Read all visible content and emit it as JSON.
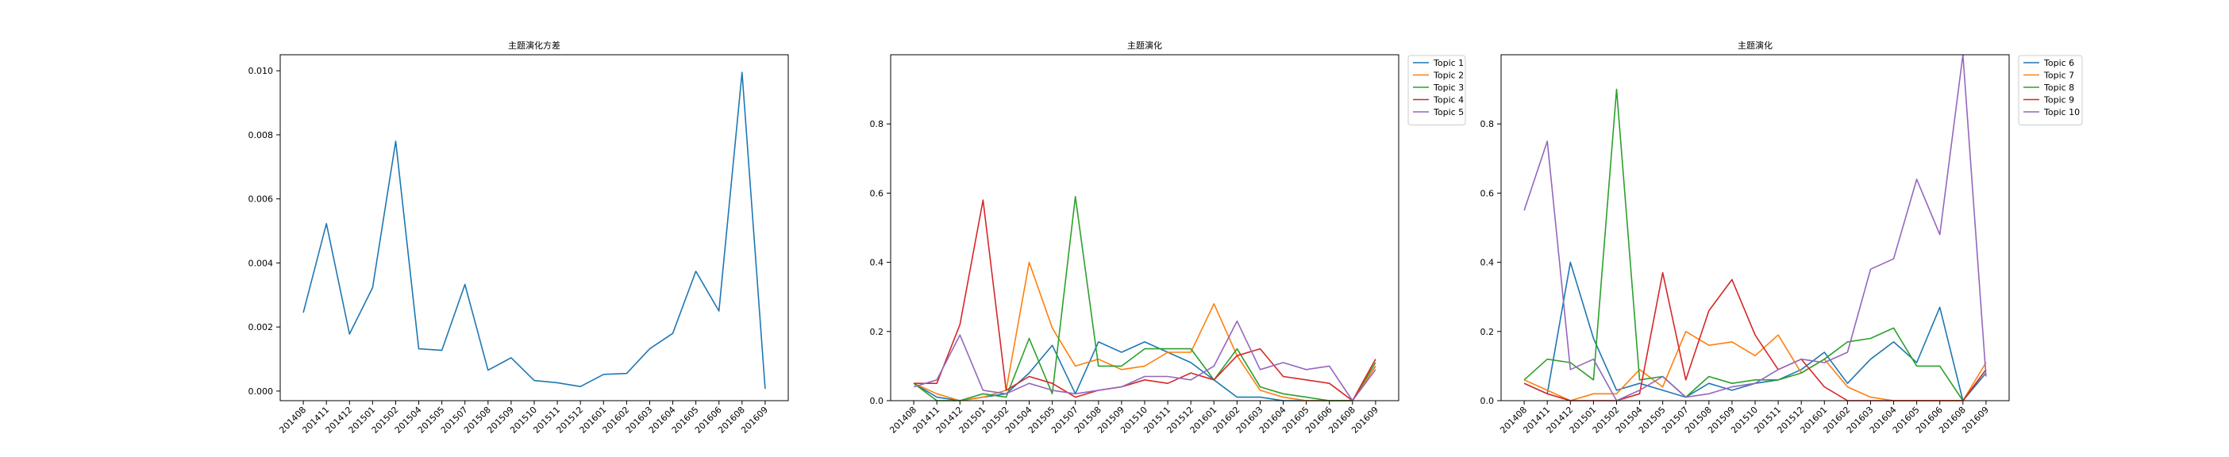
{
  "colors": {
    "c0": "#1f77b4",
    "c1": "#ff7f0e",
    "c2": "#2ca02c",
    "c3": "#d62728",
    "c4": "#9467bd"
  },
  "chart_data": [
    {
      "type": "line",
      "title": "主题演化方差",
      "xlabel": "",
      "ylabel": "",
      "categories": [
        "201408",
        "201411",
        "201412",
        "201501",
        "201502",
        "201504",
        "201505",
        "201507",
        "201508",
        "201509",
        "201510",
        "201511",
        "201512",
        "201601",
        "201602",
        "201603",
        "201604",
        "201605",
        "201606",
        "201608",
        "201609"
      ],
      "ylim": [
        -0.0003,
        0.0105
      ],
      "yticks": [
        0.0,
        0.002,
        0.004,
        0.006,
        0.008,
        0.01
      ],
      "ytick_labels": [
        "0.000",
        "0.002",
        "0.004",
        "0.006",
        "0.008",
        "0.010"
      ],
      "grid": false,
      "legend": null,
      "series": [
        {
          "color": "#1f77b4",
          "values": [
            0.00245,
            0.00523,
            0.00178,
            0.00323,
            0.0078,
            0.00132,
            0.00127,
            0.00333,
            0.00065,
            0.00104,
            0.00033,
            0.00026,
            0.00014,
            0.00052,
            0.00055,
            0.00132,
            0.0018,
            0.00374,
            0.0025,
            0.00995,
            7e-05
          ]
        }
      ]
    },
    {
      "type": "line",
      "title": "主题演化",
      "xlabel": "",
      "ylabel": "",
      "categories": [
        "201408",
        "201411",
        "201412",
        "201501",
        "201502",
        "201504",
        "201505",
        "201507",
        "201508",
        "201509",
        "201510",
        "201511",
        "201512",
        "201601",
        "201602",
        "201603",
        "201604",
        "201605",
        "201606",
        "201608",
        "201609"
      ],
      "ylim": [
        0.0,
        1.0
      ],
      "yticks": [
        0.0,
        0.2,
        0.4,
        0.6,
        0.8
      ],
      "ytick_labels": [
        "0.0",
        "0.2",
        "0.4",
        "0.6",
        "0.8"
      ],
      "grid": false,
      "legend": "outside-top-right",
      "series": [
        {
          "name": "Topic 1",
          "color": "#1f77b4",
          "values": [
            0.05,
            0.01,
            0.0,
            0.01,
            0.02,
            0.08,
            0.16,
            0.02,
            0.17,
            0.14,
            0.17,
            0.14,
            0.11,
            0.06,
            0.01,
            0.01,
            0.0,
            0.0,
            0.0,
            0.0,
            0.1
          ]
        },
        {
          "name": "Topic 2",
          "color": "#ff7f0e",
          "values": [
            0.05,
            0.02,
            0.0,
            0.01,
            0.03,
            0.4,
            0.21,
            0.1,
            0.12,
            0.09,
            0.1,
            0.14,
            0.14,
            0.28,
            0.13,
            0.03,
            0.01,
            0.0,
            0.0,
            0.0,
            0.1
          ]
        },
        {
          "name": "Topic 3",
          "color": "#2ca02c",
          "values": [
            0.05,
            0.0,
            0.0,
            0.02,
            0.01,
            0.18,
            0.02,
            0.59,
            0.1,
            0.1,
            0.15,
            0.15,
            0.15,
            0.06,
            0.15,
            0.04,
            0.02,
            0.01,
            0.0,
            0.0,
            0.11
          ]
        },
        {
          "name": "Topic 4",
          "color": "#d62728",
          "values": [
            0.05,
            0.05,
            0.22,
            0.58,
            0.03,
            0.07,
            0.05,
            0.01,
            0.03,
            0.04,
            0.06,
            0.05,
            0.08,
            0.06,
            0.13,
            0.15,
            0.07,
            0.06,
            0.05,
            0.0,
            0.12
          ]
        },
        {
          "name": "Topic 5",
          "color": "#9467bd",
          "values": [
            0.04,
            0.06,
            0.19,
            0.03,
            0.02,
            0.05,
            0.03,
            0.02,
            0.03,
            0.04,
            0.07,
            0.07,
            0.06,
            0.1,
            0.23,
            0.09,
            0.11,
            0.09,
            0.1,
            0.0,
            0.09
          ]
        }
      ]
    },
    {
      "type": "line",
      "title": "主题演化",
      "xlabel": "",
      "ylabel": "",
      "categories": [
        "201408",
        "201411",
        "201412",
        "201501",
        "201502",
        "201504",
        "201505",
        "201507",
        "201508",
        "201509",
        "201510",
        "201511",
        "201512",
        "201601",
        "201602",
        "201603",
        "201604",
        "201605",
        "201606",
        "201608",
        "201609"
      ],
      "ylim": [
        0.0,
        1.0
      ],
      "yticks": [
        0.0,
        0.2,
        0.4,
        0.6,
        0.8
      ],
      "ytick_labels": [
        "0.0",
        "0.2",
        "0.4",
        "0.6",
        "0.8"
      ],
      "grid": false,
      "legend": "outside-top-right",
      "series": [
        {
          "name": "Topic 6",
          "color": "#1f77b4",
          "values": [
            0.05,
            0.02,
            0.4,
            0.18,
            0.03,
            0.05,
            0.03,
            0.01,
            0.05,
            0.03,
            0.05,
            0.06,
            0.09,
            0.14,
            0.05,
            0.12,
            0.17,
            0.11,
            0.27,
            0.0,
            0.08
          ]
        },
        {
          "name": "Topic 7",
          "color": "#ff7f0e",
          "values": [
            0.06,
            0.03,
            0.0,
            0.02,
            0.02,
            0.09,
            0.04,
            0.2,
            0.16,
            0.17,
            0.13,
            0.19,
            0.08,
            0.12,
            0.04,
            0.01,
            0.0,
            0.0,
            0.0,
            0.0,
            0.11
          ]
        },
        {
          "name": "Topic 8",
          "color": "#2ca02c",
          "values": [
            0.06,
            0.12,
            0.11,
            0.06,
            0.9,
            0.06,
            0.07,
            0.01,
            0.07,
            0.05,
            0.06,
            0.06,
            0.08,
            0.12,
            0.17,
            0.18,
            0.21,
            0.1,
            0.1,
            0.0,
            0.09
          ]
        },
        {
          "name": "Topic 9",
          "color": "#d62728",
          "values": [
            0.05,
            0.02,
            0.0,
            0.0,
            0.0,
            0.02,
            0.37,
            0.06,
            0.26,
            0.35,
            0.19,
            0.09,
            0.12,
            0.04,
            0.0,
            0.0,
            0.0,
            0.0,
            0.0,
            0.0,
            0.09
          ]
        },
        {
          "name": "Topic 10",
          "color": "#9467bd",
          "values": [
            0.55,
            0.75,
            0.09,
            0.12,
            0.0,
            0.03,
            0.07,
            0.01,
            0.02,
            0.04,
            0.05,
            0.09,
            0.12,
            0.11,
            0.14,
            0.38,
            0.41,
            0.64,
            0.48,
            1.0,
            0.07
          ]
        }
      ]
    }
  ]
}
